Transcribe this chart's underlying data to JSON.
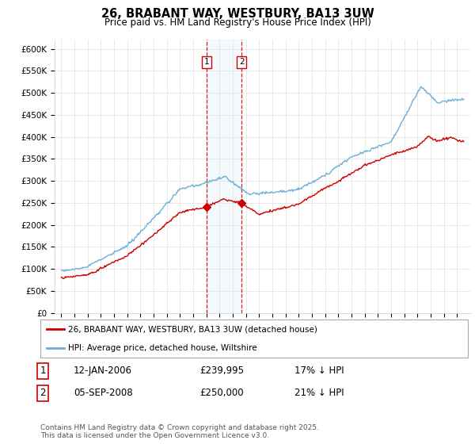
{
  "title": "26, BRABANT WAY, WESTBURY, BA13 3UW",
  "subtitle": "Price paid vs. HM Land Registry's House Price Index (HPI)",
  "ylabel_ticks": [
    "£0",
    "£50K",
    "£100K",
    "£150K",
    "£200K",
    "£250K",
    "£300K",
    "£350K",
    "£400K",
    "£450K",
    "£500K",
    "£550K",
    "£600K"
  ],
  "ylim": [
    0,
    620000
  ],
  "ytick_vals": [
    0,
    50000,
    100000,
    150000,
    200000,
    250000,
    300000,
    350000,
    400000,
    450000,
    500000,
    550000,
    600000
  ],
  "hpi_color": "#6baed6",
  "price_color": "#cc0000",
  "purchase1_date": 2006.04,
  "purchase1_price": 239995,
  "purchase2_date": 2008.68,
  "purchase2_price": 250000,
  "vline1_color": "#cc0000",
  "vline2_color": "#cc0000",
  "shade_color": "#d6e8f5",
  "legend_label1": "26, BRABANT WAY, WESTBURY, BA13 3UW (detached house)",
  "legend_label2": "HPI: Average price, detached house, Wiltshire",
  "table_row1": [
    "1",
    "12-JAN-2006",
    "£239,995",
    "17% ↓ HPI"
  ],
  "table_row2": [
    "2",
    "05-SEP-2008",
    "£250,000",
    "21% ↓ HPI"
  ],
  "footer": "Contains HM Land Registry data © Crown copyright and database right 2025.\nThis data is licensed under the Open Government Licence v3.0.",
  "background_color": "#ffffff",
  "grid_color": "#e0e0e0",
  "box1_color": "#cc0000",
  "box2_color": "#cc0000"
}
